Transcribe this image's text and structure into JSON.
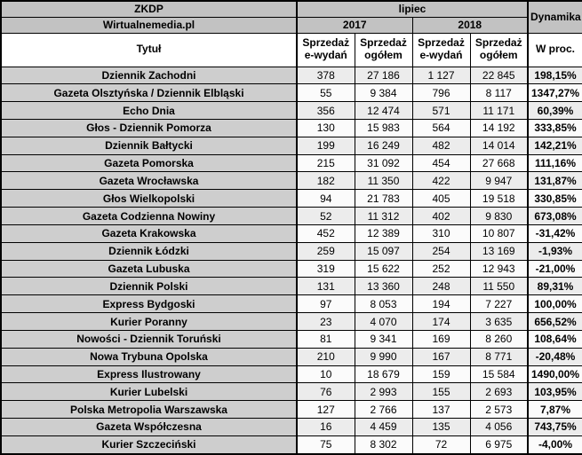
{
  "header": {
    "org": "ZKDP",
    "source": "Wirtualnemedia.pl",
    "month": "lipiec",
    "year_left": "2017",
    "year_right": "2018",
    "dynamics": "Dynamika",
    "title_col": "Tytuł",
    "sub_esales_2017": "Sprzedaż e-wydań",
    "sub_total_2017": "Sprzedaż ogółem",
    "sub_esales_2018": "Sprzedaż e-wydań",
    "sub_total_2018": "Sprzedaż ogółem",
    "sub_percent": "W proc."
  },
  "colors": {
    "header_gray": "#c2c2c2",
    "title_col_gray": "#cecece",
    "stripe_odd": "#ececec",
    "stripe_even": "#fbfbfb",
    "border": "#000000"
  },
  "chart_data": {
    "type": "table",
    "title": "ZKDP / Wirtualnemedia.pl — lipiec 2017 vs 2018",
    "columns": [
      "Tytuł",
      "2017 Sprzedaż e-wydań",
      "2017 Sprzedaż ogółem",
      "2018 Sprzedaż e-wydań",
      "2018 Sprzedaż ogółem",
      "Dynamika W proc."
    ],
    "rows": [
      [
        "Dziennik Zachodni",
        "378",
        "27 186",
        "1 127",
        "22 845",
        "198,15%"
      ],
      [
        "Gazeta Olsztyńska / Dziennik Elbląski",
        "55",
        "9 384",
        "796",
        "8 117",
        "1347,27%"
      ],
      [
        "Echo Dnia",
        "356",
        "12 474",
        "571",
        "11 171",
        "60,39%"
      ],
      [
        "Głos - Dziennik Pomorza",
        "130",
        "15 983",
        "564",
        "14 192",
        "333,85%"
      ],
      [
        "Dziennik Bałtycki",
        "199",
        "16 249",
        "482",
        "14 014",
        "142,21%"
      ],
      [
        "Gazeta Pomorska",
        "215",
        "31 092",
        "454",
        "27 668",
        "111,16%"
      ],
      [
        "Gazeta Wrocławska",
        "182",
        "11 350",
        "422",
        "9 947",
        "131,87%"
      ],
      [
        "Głos Wielkopolski",
        "94",
        "21 783",
        "405",
        "19 518",
        "330,85%"
      ],
      [
        "Gazeta Codzienna Nowiny",
        "52",
        "11 312",
        "402",
        "9 830",
        "673,08%"
      ],
      [
        "Gazeta Krakowska",
        "452",
        "12 389",
        "310",
        "10 807",
        "-31,42%"
      ],
      [
        "Dziennik Łódzki",
        "259",
        "15 097",
        "254",
        "13 169",
        "-1,93%"
      ],
      [
        "Gazeta Lubuska",
        "319",
        "15 622",
        "252",
        "12 943",
        "-21,00%"
      ],
      [
        "Dziennik Polski",
        "131",
        "13 360",
        "248",
        "11 550",
        "89,31%"
      ],
      [
        "Express Bydgoski",
        "97",
        "8 053",
        "194",
        "7 227",
        "100,00%"
      ],
      [
        "Kurier Poranny",
        "23",
        "4 070",
        "174",
        "3 635",
        "656,52%"
      ],
      [
        "Nowości - Dziennik Toruński",
        "81",
        "9 341",
        "169",
        "8 260",
        "108,64%"
      ],
      [
        "Nowa Trybuna Opolska",
        "210",
        "9 990",
        "167",
        "8 771",
        "-20,48%"
      ],
      [
        "Express Ilustrowany",
        "10",
        "18 679",
        "159",
        "15 584",
        "1490,00%"
      ],
      [
        "Kurier Lubelski",
        "76",
        "2 993",
        "155",
        "2 693",
        "103,95%"
      ],
      [
        "Polska Metropolia Warszawska",
        "127",
        "2 766",
        "137",
        "2 573",
        "7,87%"
      ],
      [
        "Gazeta Współczesna",
        "16",
        "4 459",
        "135",
        "4 056",
        "743,75%"
      ],
      [
        "Kurier Szczeciński",
        "75",
        "8 302",
        "72",
        "6 975",
        "-4,00%"
      ]
    ]
  }
}
